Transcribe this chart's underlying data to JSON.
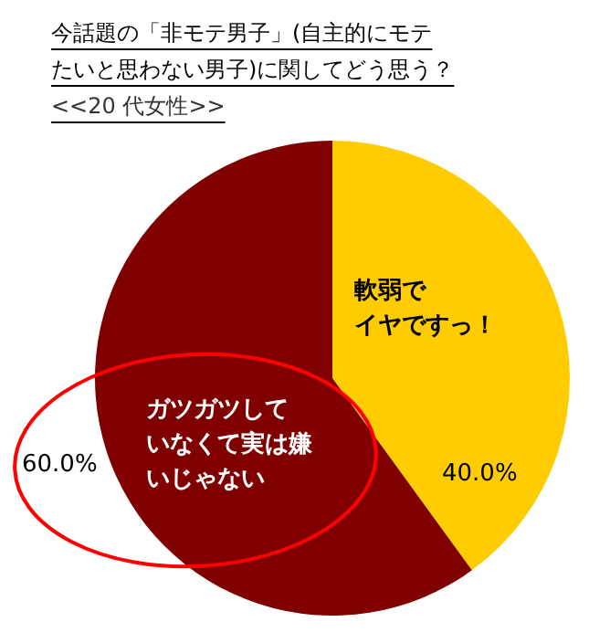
{
  "chart_data": {
    "type": "pie",
    "title": "今話題の「非モテ男子」(自主的にモテたいと思わない男子)に関してどう思う？",
    "subtitle": "<<20 代女性>>",
    "categories": [
      "軟弱でイヤですっ！",
      "ガツガツしていなくて実は嫌いじゃない"
    ],
    "values": [
      40,
      60
    ],
    "colors": [
      "#ffcc00",
      "#800000"
    ],
    "value_labels": [
      "40.0%",
      "60.0%"
    ],
    "legend": false
  }
}
